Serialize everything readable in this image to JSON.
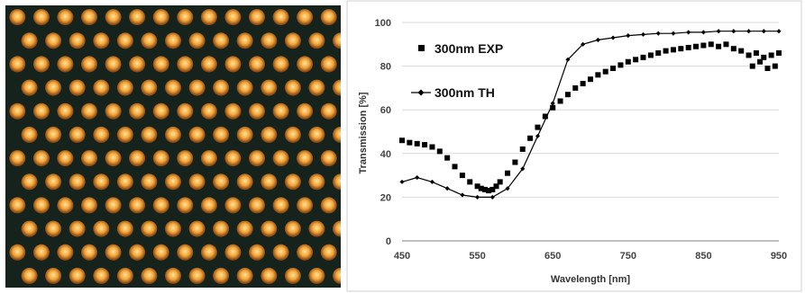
{
  "micrograph": {
    "image": "optical-micrograph-of-periodic-nanodisk-array",
    "colors": {
      "background": "#16231c",
      "dot_core": "#ffe39a",
      "dot_mid": "#f2a53a",
      "dot_edge": "#8c4a14"
    }
  },
  "chart_data": {
    "type": "line",
    "title": "",
    "xlabel": "Wavelength [nm]",
    "ylabel": "Transmission [%]",
    "xlim": [
      450,
      950
    ],
    "ylim": [
      0,
      100
    ],
    "xticks": [
      450,
      550,
      650,
      750,
      850,
      950
    ],
    "yticks": [
      0,
      20,
      40,
      60,
      80,
      100
    ],
    "grid": "horizontal",
    "legend_position": "top-left",
    "series": [
      {
        "name": "300nm EXP",
        "marker": "square",
        "color": "#000000",
        "x": [
          450,
          460,
          470,
          480,
          490,
          500,
          510,
          520,
          530,
          540,
          550,
          555,
          560,
          565,
          570,
          575,
          580,
          590,
          600,
          610,
          620,
          630,
          640,
          650,
          660,
          670,
          680,
          690,
          700,
          710,
          720,
          730,
          740,
          750,
          760,
          770,
          780,
          790,
          800,
          810,
          820,
          830,
          840,
          850,
          860,
          870,
          880,
          890,
          900,
          910,
          915,
          920,
          925,
          930,
          935,
          940,
          945,
          950
        ],
        "y": [
          46,
          45,
          44.5,
          44,
          43,
          41,
          38,
          34,
          30,
          27,
          25,
          24,
          23.5,
          23,
          23.5,
          25,
          27,
          31,
          36,
          42,
          47,
          52,
          57,
          61,
          64,
          67,
          70,
          72,
          74,
          76,
          77.5,
          79,
          80.5,
          82,
          83,
          84,
          85,
          86,
          87,
          87.5,
          88,
          88.5,
          89,
          89.5,
          90,
          89,
          90,
          88,
          87,
          85,
          80,
          86,
          82,
          84,
          79,
          85,
          80,
          86
        ]
      },
      {
        "name": "300nm TH",
        "marker": "diamond",
        "color": "#000000",
        "x": [
          450,
          470,
          490,
          510,
          530,
          550,
          570,
          590,
          610,
          630,
          650,
          670,
          690,
          710,
          730,
          750,
          770,
          790,
          810,
          830,
          850,
          870,
          890,
          910,
          930,
          950
        ],
        "y": [
          27,
          29,
          27,
          24,
          21,
          20,
          20,
          24,
          33,
          48,
          63,
          83,
          90,
          92,
          93,
          94,
          94.5,
          95,
          95,
          95.5,
          95.5,
          96,
          96,
          96,
          96,
          96
        ]
      }
    ]
  }
}
